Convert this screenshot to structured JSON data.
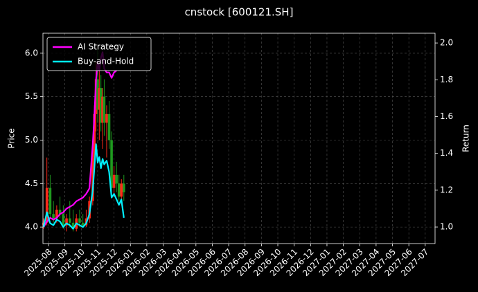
{
  "chart_data": {
    "type": "candlestick",
    "title": "cnstock [600121.SH]",
    "ylabel": "Price",
    "y2label": "Return",
    "up_color": "#ff2a1a",
    "down_color": "#1f9a1f",
    "grid": true,
    "legend": "upper left",
    "x": [
      -0.3,
      -0.1,
      0.1,
      0.3,
      0.5,
      0.7,
      0.9,
      1.1,
      1.3,
      1.5,
      1.7,
      1.9,
      2.1,
      2.3,
      2.5,
      2.7,
      2.8,
      2.9,
      3.0,
      3.1,
      3.2,
      3.3,
      3.4,
      3.55,
      3.7,
      3.85,
      4.0,
      4.15,
      4.3,
      4.45,
      4.6
    ],
    "open": [
      4.02,
      4.05,
      4.45,
      4.15,
      4.1,
      4.2,
      4.15,
      4.02,
      4.1,
      4.05,
      3.98,
      4.1,
      4.05,
      4.02,
      4.1,
      4.3,
      4.8,
      5.3,
      5.7,
      5.35,
      5.6,
      5.2,
      5.5,
      5.2,
      5.3,
      5.0,
      4.45,
      4.6,
      4.5,
      4.35,
      4.5
    ],
    "high": [
      4.1,
      4.8,
      4.6,
      4.3,
      4.25,
      4.35,
      4.25,
      4.15,
      4.3,
      4.2,
      4.15,
      4.2,
      4.15,
      4.2,
      4.35,
      4.9,
      5.4,
      5.9,
      6.05,
      5.8,
      5.75,
      5.6,
      5.7,
      5.4,
      5.45,
      5.1,
      4.7,
      4.75,
      4.6,
      4.55,
      4.6
    ],
    "low": [
      3.98,
      4.02,
      4.1,
      4.05,
      4.05,
      4.1,
      3.98,
      3.95,
      4.0,
      3.95,
      3.95,
      4.0,
      4.0,
      4.0,
      4.05,
      4.25,
      4.7,
      5.1,
      5.2,
      5.0,
      5.1,
      4.9,
      5.05,
      4.8,
      4.9,
      4.4,
      4.35,
      4.4,
      4.3,
      4.25,
      4.3
    ],
    "close": [
      4.05,
      4.45,
      4.15,
      4.1,
      4.2,
      4.15,
      4.02,
      4.1,
      4.05,
      3.98,
      4.1,
      4.05,
      4.02,
      4.1,
      4.3,
      4.8,
      5.3,
      5.7,
      5.35,
      5.6,
      5.2,
      5.5,
      5.2,
      5.3,
      5.0,
      4.45,
      4.6,
      4.5,
      4.35,
      4.5,
      4.4
    ],
    "series": [
      {
        "name": "AI Strategy",
        "color": "#ff00ff",
        "axis": "y2",
        "values": [
          1.0,
          1.03,
          1.05,
          1.04,
          1.05,
          1.07,
          1.08,
          1.1,
          1.11,
          1.12,
          1.14,
          1.15,
          1.16,
          1.18,
          1.21,
          1.45,
          1.6,
          1.8,
          1.9,
          1.85,
          1.92,
          1.95,
          1.86,
          1.84,
          1.84,
          1.81,
          1.84,
          1.85,
          null,
          null,
          null
        ]
      },
      {
        "name": "Buy-and-Hold",
        "color": "#00f0ff",
        "axis": "y2",
        "values": [
          1.0,
          1.08,
          1.02,
          1.01,
          1.04,
          1.03,
          1.0,
          1.02,
          1.01,
          0.99,
          1.02,
          1.01,
          1.0,
          1.02,
          1.07,
          1.2,
          1.32,
          1.45,
          1.35,
          1.38,
          1.32,
          1.37,
          1.34,
          1.36,
          1.3,
          1.16,
          1.18,
          1.15,
          1.12,
          1.15,
          1.05
        ]
      }
    ],
    "xlim": [
      -0.34,
      23.6
    ],
    "xticks": [
      {
        "value": 0,
        "label": "2025-08"
      },
      {
        "value": 1,
        "label": "2025-09"
      },
      {
        "value": 2,
        "label": "2025-10"
      },
      {
        "value": 3,
        "label": "2025-11"
      },
      {
        "value": 4,
        "label": "2025-12"
      },
      {
        "value": 5,
        "label": "2026-01"
      },
      {
        "value": 6,
        "label": "2026-02"
      },
      {
        "value": 7,
        "label": "2026-03"
      },
      {
        "value": 8,
        "label": "2026-04"
      },
      {
        "value": 9,
        "label": "2026-05"
      },
      {
        "value": 10,
        "label": "2026-06"
      },
      {
        "value": 11,
        "label": "2026-07"
      },
      {
        "value": 12,
        "label": "2026-08"
      },
      {
        "value": 13,
        "label": "2026-09"
      },
      {
        "value": 14,
        "label": "2026-10"
      },
      {
        "value": 15,
        "label": "2026-11"
      },
      {
        "value": 16,
        "label": "2026-12"
      },
      {
        "value": 17,
        "label": "2027-01"
      },
      {
        "value": 18,
        "label": "2027-02"
      },
      {
        "value": 19,
        "label": "2027-03"
      },
      {
        "value": 20,
        "label": "2027-04"
      },
      {
        "value": 21,
        "label": "2027-05"
      },
      {
        "value": 22,
        "label": "2027-06"
      },
      {
        "value": 23,
        "label": "2027-07"
      }
    ],
    "ylim": [
      3.81,
      6.23
    ],
    "yticks": [
      {
        "value": 4,
        "label": "4.0"
      },
      4.5,
      {
        "value": 5,
        "label": "5.0"
      },
      5.5,
      {
        "value": 6,
        "label": "6.0"
      }
    ],
    "y2lim": [
      0.91,
      2.053
    ],
    "y2ticks": [
      {
        "value": 1,
        "label": "1.0"
      },
      1.2,
      1.4,
      1.6,
      1.8,
      {
        "value": 2,
        "label": "2.0"
      }
    ]
  }
}
